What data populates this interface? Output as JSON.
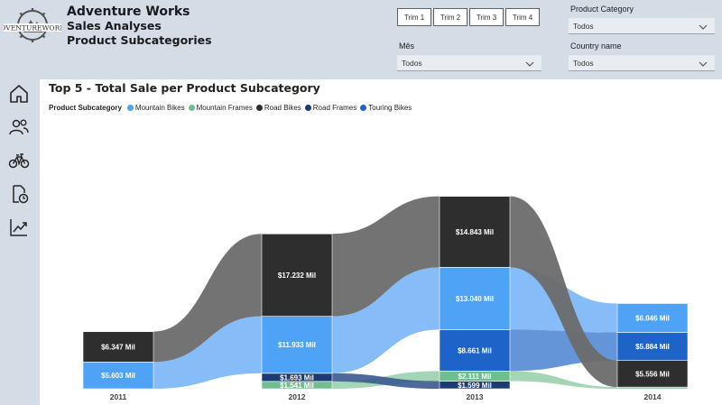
{
  "header": {
    "logo_text": "ADVENTUREWORKS",
    "title": "Adventure Works",
    "subtitle": "Sales Analyses",
    "page": "Product Subcategories"
  },
  "filters": {
    "quarters": [
      "Trim 1",
      "Trim 2",
      "Trim 3",
      "Trim 4"
    ],
    "month_label": "Mês",
    "month_value": "Todos",
    "category_label": "Product Category",
    "category_value": "Todos",
    "country_label": "Country name",
    "country_value": "Todos"
  },
  "nav": [
    "home-icon",
    "customers-icon",
    "bike-icon",
    "report-clock-icon",
    "trend-chart-icon"
  ],
  "colors": {
    "Mountain Bikes": "#4fa3f7",
    "Mountain Frames": "#6fbf8e",
    "Road Bikes": "#2e2e2e",
    "Road Frames": "#1a3b73",
    "Touring Bikes": "#1e64c8"
  },
  "chart_data": {
    "type": "ribbon",
    "title": "Top 5 - Total Sale per Product Subcategory",
    "legend_title": "Product Subcategory",
    "series_names": [
      "Mountain Bikes",
      "Mountain Frames",
      "Road Bikes",
      "Road Frames",
      "Touring Bikes"
    ],
    "categories": [
      "2011",
      "2012",
      "2013",
      "2014"
    ],
    "stacks": [
      [
        {
          "name": "Mountain Bikes",
          "value": 5.603,
          "label": "$5.603 Mil"
        },
        {
          "name": "Road Bikes",
          "value": 6.347,
          "label": "$6.347 Mil"
        }
      ],
      [
        {
          "name": "Mountain Frames",
          "value": 1.541,
          "label": "$1.541 Mil"
        },
        {
          "name": "Road Frames",
          "value": 1.693,
          "label": "$1.693 Mil"
        },
        {
          "name": "Mountain Bikes",
          "value": 11.933,
          "label": "$11.933 Mil"
        },
        {
          "name": "Road Bikes",
          "value": 17.232,
          "label": "$17.232 Mil"
        }
      ],
      [
        {
          "name": "Road Frames",
          "value": 1.599,
          "label": "$1.599 Mil"
        },
        {
          "name": "Mountain Frames",
          "value": 2.111,
          "label": "$2.111 Mil"
        },
        {
          "name": "Touring Bikes",
          "value": 8.661,
          "label": "$8.661 Mil"
        },
        {
          "name": "Mountain Bikes",
          "value": 13.04,
          "label": "$13.040 Mil"
        },
        {
          "name": "Road Bikes",
          "value": 14.843,
          "label": "$14.843 Mil"
        }
      ],
      [
        {
          "name": "Mountain Frames",
          "value": 0.35,
          "label": ""
        },
        {
          "name": "Road Bikes",
          "value": 5.556,
          "label": "$5.556 Mil"
        },
        {
          "name": "Touring Bikes",
          "value": 5.884,
          "label": "$5.884 Mil"
        },
        {
          "name": "Mountain Bikes",
          "value": 6.046,
          "label": "$6.046 Mil"
        }
      ]
    ]
  }
}
